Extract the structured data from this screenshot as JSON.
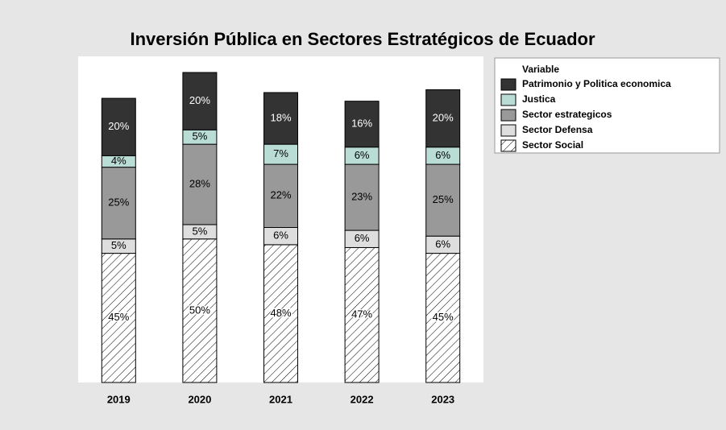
{
  "chart_data": {
    "type": "stacked_bar",
    "title": "Inversión Pública en Sectores Estratégicos de Ecuador",
    "categories": [
      "2019",
      "2020",
      "2021",
      "2022",
      "2023"
    ],
    "legend_title": "Variable",
    "legend": "right",
    "series": [
      {
        "name": "Patrimonio y Politica economica",
        "color": "#333333",
        "values": [
          20,
          20,
          18,
          16,
          20
        ],
        "value_labels": [
          "20%",
          "20%",
          "18%",
          "16%",
          "20%"
        ]
      },
      {
        "name": "Justica",
        "color": "#b9ddd5",
        "values": [
          4,
          5,
          7,
          6,
          6
        ],
        "value_labels": [
          "4%",
          "5%",
          "7%",
          "6%",
          "6%"
        ]
      },
      {
        "name": "Sector estrategicos",
        "color": "#999999",
        "values": [
          25,
          28,
          22,
          23,
          25
        ],
        "value_labels": [
          "25%",
          "28%",
          "22%",
          "23%",
          "25%"
        ]
      },
      {
        "name": "Sector Defensa",
        "color": "#dedede",
        "values": [
          5,
          5,
          6,
          6,
          6
        ],
        "value_labels": [
          "5%",
          "5%",
          "6%",
          "6%",
          "6%"
        ]
      },
      {
        "name": "Sector Social",
        "color": "#ffffff",
        "pattern": "hatch",
        "values": [
          45,
          50,
          48,
          47,
          45
        ],
        "value_labels": [
          "45%",
          "50%",
          "48%",
          "47%",
          "45%"
        ]
      }
    ]
  }
}
